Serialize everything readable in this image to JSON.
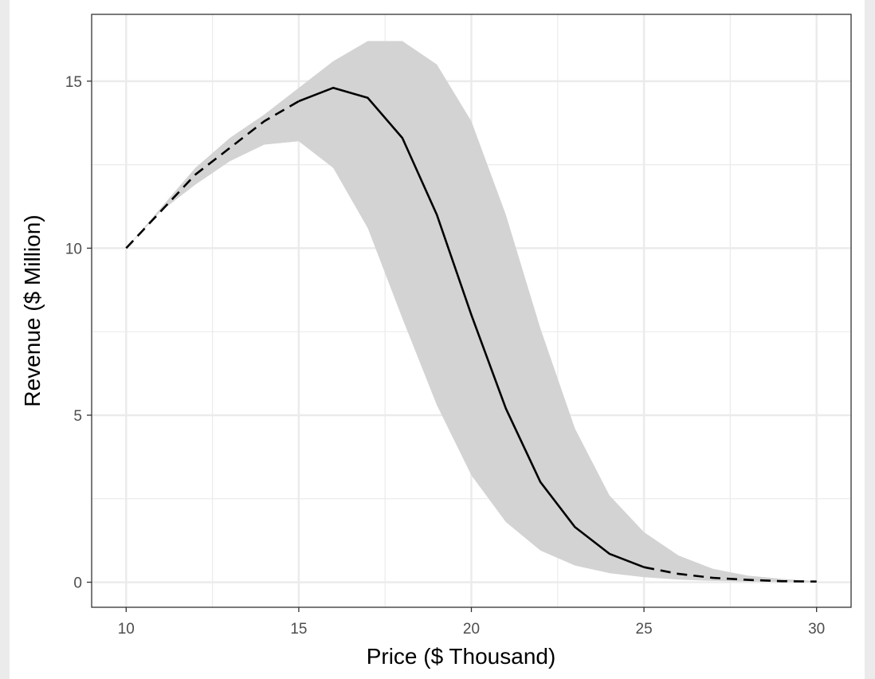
{
  "chart_data": {
    "type": "line",
    "xlabel": "Price ($ Thousand)",
    "ylabel": "Revenue ($ Million)",
    "xlim": [
      9,
      31
    ],
    "ylim": [
      -0.75,
      17
    ],
    "x_ticks": [
      10,
      15,
      20,
      25,
      30
    ],
    "y_ticks": [
      0,
      5,
      10,
      15
    ],
    "grid": true,
    "legend": "none",
    "series": [
      {
        "style": "dashed",
        "x": [
          10,
          11,
          12,
          13,
          14,
          15
        ],
        "y": [
          10.0,
          11.1,
          12.2,
          13.0,
          13.8,
          14.4
        ]
      },
      {
        "style": "solid",
        "x": [
          15,
          16,
          17,
          18,
          19,
          20,
          21,
          22,
          23,
          24,
          25
        ],
        "y": [
          14.4,
          14.8,
          14.5,
          13.3,
          11.0,
          8.0,
          5.2,
          3.0,
          1.65,
          0.85,
          0.45
        ]
      },
      {
        "style": "dashed",
        "x": [
          25,
          26,
          27,
          28,
          29,
          30
        ],
        "y": [
          0.45,
          0.25,
          0.13,
          0.07,
          0.03,
          0.02
        ]
      }
    ],
    "band": {
      "x": [
        10,
        11,
        12,
        13,
        14,
        15,
        16,
        17,
        18,
        19,
        20,
        21,
        22,
        23,
        24,
        25,
        26,
        27,
        28,
        29,
        30
      ],
      "lower": [
        10.0,
        11.1,
        11.9,
        12.6,
        13.1,
        13.2,
        12.4,
        10.6,
        7.9,
        5.3,
        3.2,
        1.8,
        0.95,
        0.5,
        0.27,
        0.15,
        0.08,
        0.04,
        0.02,
        0.01,
        0.0
      ],
      "upper": [
        10.0,
        11.2,
        12.4,
        13.3,
        14.0,
        14.8,
        15.6,
        16.2,
        16.2,
        15.5,
        13.8,
        11.0,
        7.6,
        4.6,
        2.6,
        1.5,
        0.8,
        0.4,
        0.2,
        0.1,
        0.03
      ]
    },
    "colors": {
      "line": "#000000",
      "band": "#d3d3d3",
      "panel_background": "#ffffff",
      "grid": "#ebebeb",
      "outer_background": "#ebebeb"
    }
  }
}
